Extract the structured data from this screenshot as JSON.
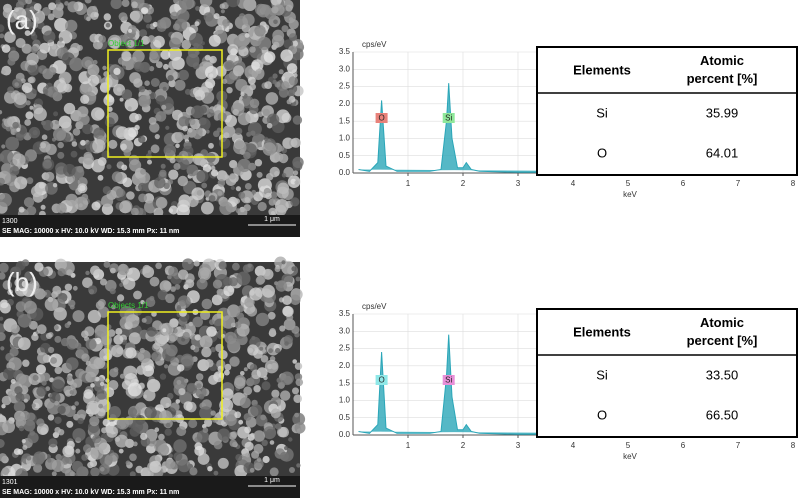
{
  "panels": [
    {
      "label": "(a)",
      "sem": {
        "image_id": "1300",
        "info": "SE MAG: 10000 x HV: 10.0 kV WD: 15.3 mm Px: 11 nm",
        "scale_bar": "1 μm",
        "region_label": "Object 1/1"
      },
      "chart_data": {
        "type": "area",
        "y_label": "cps/eV",
        "x_label": "keV",
        "color": "#2aa6b8",
        "grid": true,
        "xlim": [
          0,
          8
        ],
        "ylim": [
          0,
          3.5
        ],
        "xticks": [
          1,
          2,
          3,
          4,
          5,
          6,
          7,
          8
        ],
        "yticks": [
          {
            "value": 0,
            "label": "0.0"
          },
          {
            "value": 0.5,
            "label": "0.5"
          },
          {
            "value": 1,
            "label": "1.0"
          },
          {
            "value": 1.5,
            "label": "1.5"
          },
          {
            "value": 2,
            "label": "2.0"
          },
          {
            "value": 2.5,
            "label": "2.5"
          },
          {
            "value": 3,
            "label": "3.0"
          },
          {
            "value": 3.5,
            "label": "3.5"
          }
        ],
        "x": [
          0.1,
          0.3,
          0.45,
          0.52,
          0.6,
          0.8,
          1.0,
          1.4,
          1.6,
          1.7,
          1.74,
          1.8,
          1.9,
          2.0,
          2.06,
          2.15,
          2.3,
          3,
          4,
          8
        ],
        "values": [
          0.1,
          0.05,
          0.3,
          2.1,
          0.2,
          0.05,
          0.05,
          0.05,
          0.1,
          1.5,
          2.6,
          1.0,
          0.15,
          0.15,
          0.3,
          0.1,
          0.05,
          0.02,
          0.02,
          0.02
        ],
        "annotations": [
          {
            "text": "O",
            "x": 0.52,
            "color": "#e8827a"
          },
          {
            "text": "Si",
            "x": 1.74,
            "color": "#8fe89a"
          }
        ]
      },
      "table": {
        "header": [
          "Elements",
          "Atomic percent [%]"
        ],
        "rows": [
          [
            "Si",
            "35.99"
          ],
          [
            "O",
            "64.01"
          ]
        ]
      }
    },
    {
      "label": "(b)",
      "sem": {
        "image_id": "1301",
        "info": "SE MAG: 10000 x HV: 10.0 kV WD: 15.3 mm Px: 11 nm",
        "scale_bar": "1 μm",
        "region_label": "Objects 1/1"
      },
      "chart_data": {
        "type": "area",
        "y_label": "cps/eV",
        "x_label": "keV",
        "color": "#2aa6b8",
        "grid": true,
        "xlim": [
          0,
          8
        ],
        "ylim": [
          0,
          3.5
        ],
        "xticks": [
          1,
          2,
          3,
          4,
          5,
          6,
          7,
          8
        ],
        "yticks": [
          {
            "value": 0,
            "label": "0.0"
          },
          {
            "value": 0.5,
            "label": "0.5"
          },
          {
            "value": 1,
            "label": "1.0"
          },
          {
            "value": 1.5,
            "label": "1.5"
          },
          {
            "value": 2,
            "label": "2.0"
          },
          {
            "value": 2.5,
            "label": "2.5"
          },
          {
            "value": 3,
            "label": "3.0"
          },
          {
            "value": 3.5,
            "label": "3.5"
          }
        ],
        "x": [
          0.1,
          0.3,
          0.45,
          0.52,
          0.6,
          0.8,
          1.0,
          1.4,
          1.6,
          1.7,
          1.74,
          1.8,
          1.9,
          2.0,
          2.06,
          2.15,
          2.3,
          3,
          4,
          8
        ],
        "values": [
          0.1,
          0.05,
          0.3,
          2.4,
          0.2,
          0.05,
          0.05,
          0.05,
          0.1,
          1.7,
          2.9,
          1.1,
          0.15,
          0.15,
          0.3,
          0.1,
          0.05,
          0.02,
          0.02,
          0.02
        ],
        "annotations": [
          {
            "text": "O",
            "x": 0.52,
            "color": "#8fe8e8"
          },
          {
            "text": "Si",
            "x": 1.74,
            "color": "#e88fd8"
          }
        ]
      },
      "table": {
        "header": [
          "Elements",
          "Atomic percent [%]"
        ],
        "rows": [
          [
            "Si",
            "33.50"
          ],
          [
            "O",
            "66.50"
          ]
        ]
      }
    }
  ]
}
